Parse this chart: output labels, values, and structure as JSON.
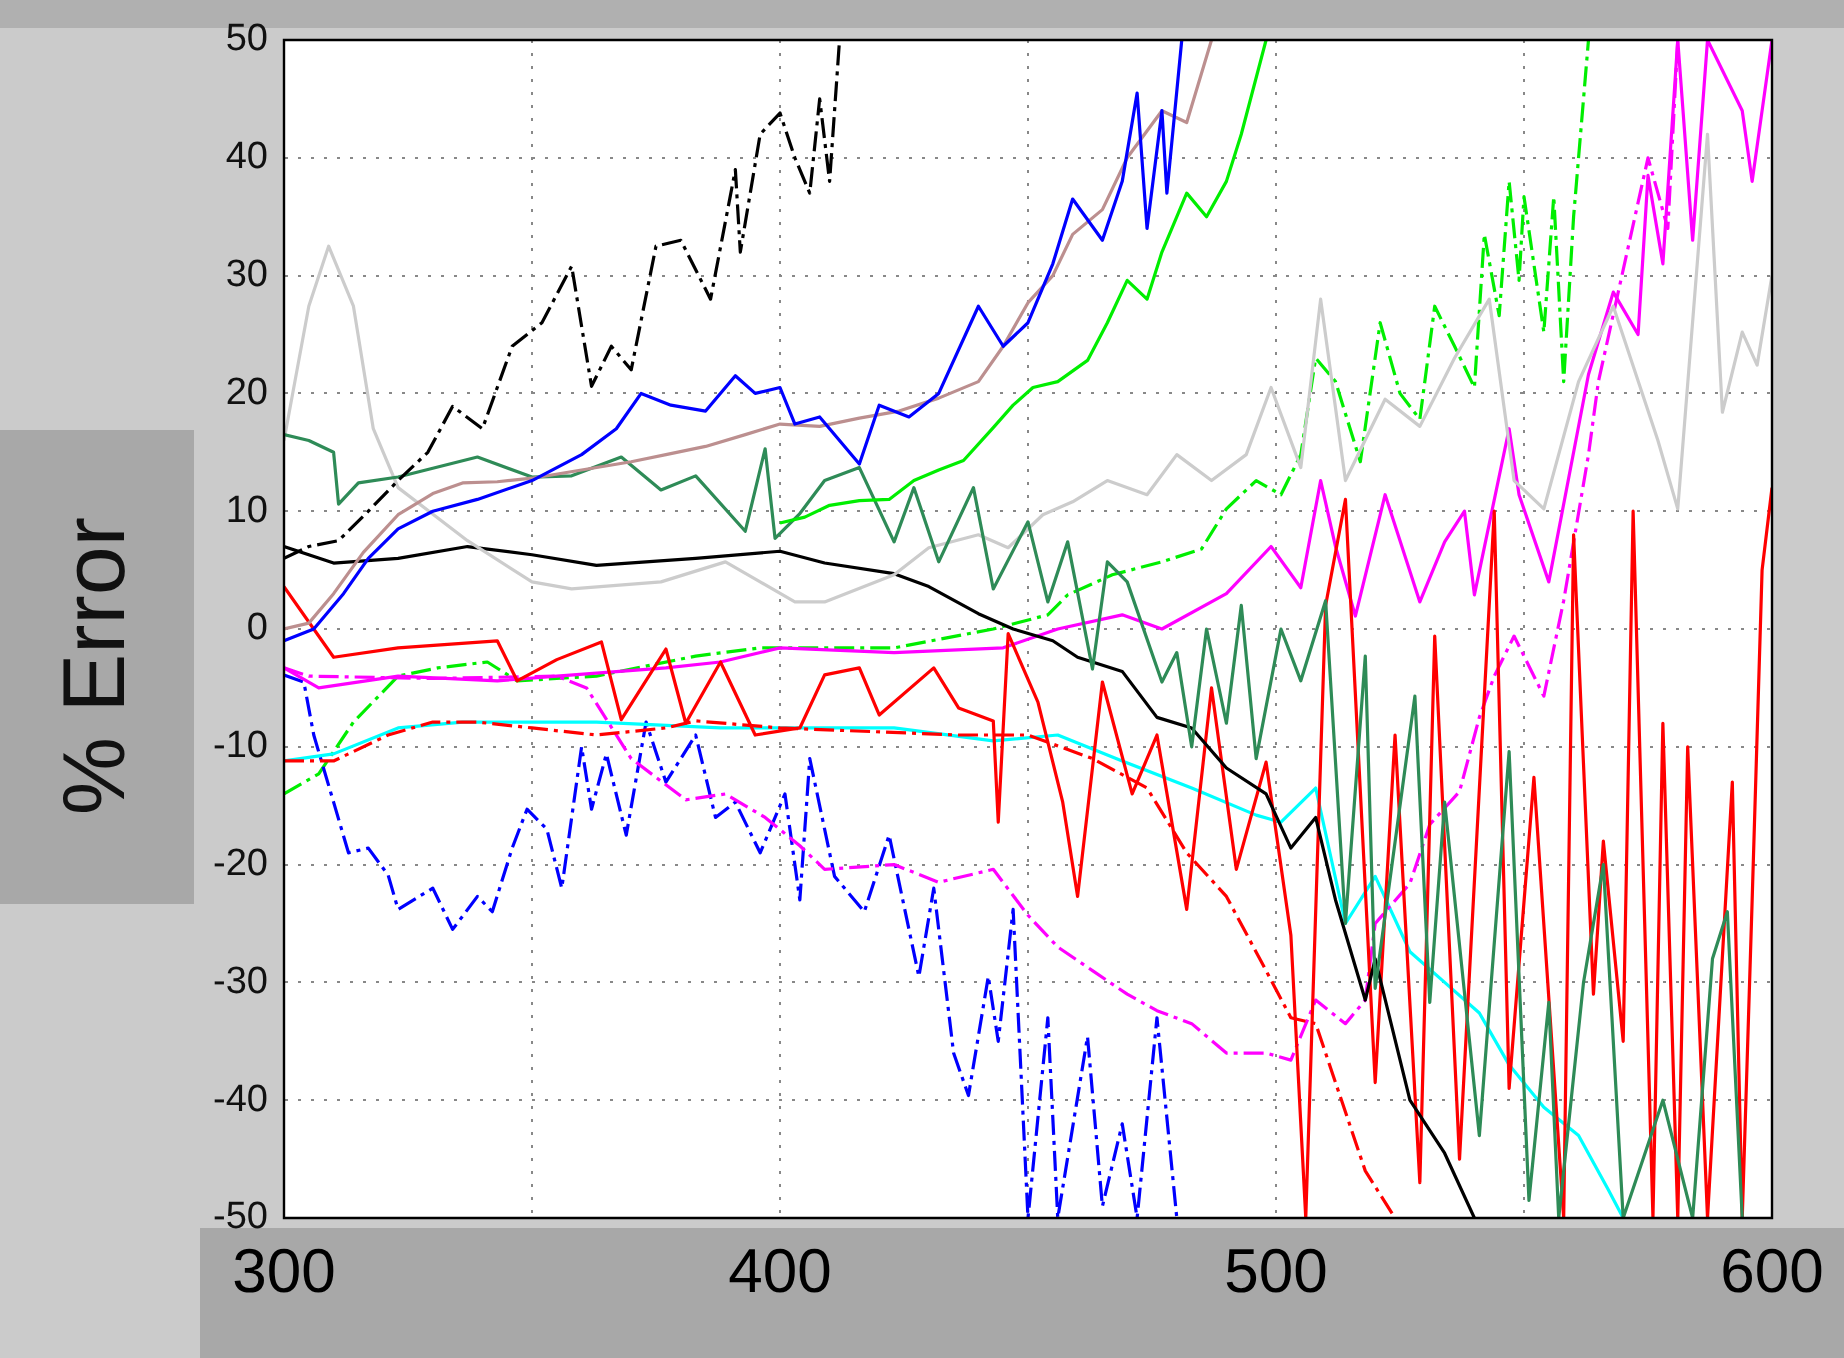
{
  "chart_data": {
    "type": "line",
    "ylabel": "% Error",
    "xlim": [
      300,
      600
    ],
    "ylim": [
      -50,
      50
    ],
    "xticks": [
      300,
      {
        "value": 350,
        "label": null
      },
      400,
      {
        "value": 450,
        "label": null
      },
      500,
      {
        "value": 550,
        "label": null
      },
      600
    ],
    "yticks": [
      -50,
      -40,
      -30,
      -20,
      -10,
      0,
      10,
      20,
      30,
      40,
      50
    ],
    "grid": true,
    "legend": false,
    "marker": "none",
    "series": [
      {
        "color": "#000000",
        "line_style": "dashed",
        "x": [
          300,
          305,
          311,
          317,
          323,
          329,
          334,
          340,
          346,
          352,
          358,
          362,
          366,
          370,
          375,
          380,
          386,
          391,
          392,
          396,
          400,
          403,
          406,
          408,
          410,
          412
        ],
        "values": [
          6,
          7,
          7.5,
          10,
          12.6,
          15,
          18.9,
          17,
          24,
          26,
          30.8,
          20.6,
          24,
          22,
          32.5,
          33,
          28,
          39,
          32,
          42,
          43.8,
          40,
          37,
          45,
          38,
          50
        ]
      },
      {
        "color": "#0000ff",
        "line_style": "solid",
        "x": [
          300,
          306,
          312,
          317,
          323,
          330,
          339,
          350,
          360,
          367,
          372,
          378,
          385,
          391,
          395,
          400,
          403,
          408,
          416,
          420,
          426,
          432,
          440,
          445,
          450,
          455,
          459,
          465,
          469,
          472,
          474,
          477,
          478,
          481
        ],
        "values": [
          -1,
          0,
          3,
          6,
          8.5,
          10,
          11,
          12.6,
          14.8,
          17,
          20,
          19,
          18.5,
          21.5,
          20,
          20.5,
          17.4,
          18,
          14,
          19,
          18,
          20,
          27.4,
          24,
          26,
          31,
          36.5,
          33,
          38,
          45.5,
          34,
          44,
          37,
          50
        ]
      },
      {
        "color": "#bc8f8f",
        "line_style": "solid",
        "x": [
          300,
          305,
          310,
          316,
          323,
          330,
          336,
          343,
          350,
          360,
          370,
          377,
          385,
          393,
          400,
          408,
          416,
          424,
          432,
          440,
          445,
          450,
          455,
          459,
          465,
          470,
          477,
          482,
          487
        ],
        "values": [
          0,
          0.5,
          3,
          6.5,
          9.7,
          11.5,
          12.4,
          12.5,
          12.8,
          13.5,
          14.2,
          14.8,
          15.5,
          16.5,
          17.4,
          17.2,
          17.9,
          18.5,
          19.6,
          21,
          24,
          27.7,
          30,
          33.5,
          35.6,
          40,
          44,
          43,
          50
        ]
      },
      {
        "color": "#00ee00",
        "line_style": "solid",
        "x": [
          400,
          405,
          410,
          416,
          422,
          427,
          432,
          437,
          443,
          447,
          451,
          456,
          462,
          466,
          470,
          474,
          477,
          482,
          486,
          490,
          493,
          498
        ],
        "values": [
          9,
          9.5,
          10.5,
          10.9,
          11,
          12.6,
          13.5,
          14.3,
          17.1,
          19,
          20.5,
          21,
          22.8,
          26,
          29.6,
          28,
          32,
          37,
          35,
          38,
          42,
          50
        ]
      },
      {
        "color": "#2e8b57",
        "line_style": "solid",
        "x": [
          300,
          305,
          310,
          311,
          315,
          323,
          339,
          350,
          358,
          368,
          376,
          383,
          393,
          397,
          399,
          404,
          409,
          416,
          423,
          427,
          432,
          439,
          443,
          450,
          454,
          458,
          463,
          466,
          470,
          477,
          480,
          483,
          486,
          490,
          493,
          496,
          501,
          505,
          510,
          514,
          518,
          520,
          528,
          531,
          534,
          541,
          547,
          551,
          555,
          557,
          562,
          566,
          570,
          578,
          584,
          588,
          591,
          594
        ],
        "values": [
          16.5,
          16,
          15,
          10.6,
          12.4,
          12.9,
          14.6,
          12.9,
          13,
          14.6,
          11.8,
          13,
          8.3,
          15.3,
          7.7,
          9.8,
          12.6,
          13.7,
          7.4,
          12,
          5.7,
          12,
          3.4,
          9.1,
          2.3,
          7.4,
          -3.4,
          5.7,
          4,
          -4.5,
          -2,
          -10,
          0,
          -8,
          2,
          -11,
          0,
          -4.4,
          2.4,
          -25,
          -2.3,
          -30.5,
          -5.7,
          -31.7,
          -14.7,
          -43,
          -10.4,
          -48.5,
          -31.7,
          -50,
          -30,
          -20,
          -50,
          -40,
          -50,
          -28,
          -24,
          -50
        ]
      },
      {
        "color": "#cccccc",
        "line_style": "solid",
        "x": [
          300,
          305,
          309,
          314,
          318,
          323,
          337,
          350,
          358,
          376,
          389,
          396,
          403,
          409,
          423,
          430,
          440,
          446,
          453,
          459,
          466,
          474,
          480,
          487,
          494,
          499,
          505,
          509,
          514,
          522,
          529,
          536,
          543,
          548,
          554,
          561,
          568,
          577,
          581,
          587,
          590,
          594,
          597,
          600
        ],
        "values": [
          16,
          27.4,
          32.5,
          27.4,
          17,
          12,
          7.5,
          4,
          3.4,
          4,
          5.7,
          4,
          2.3,
          2.3,
          4.6,
          6.9,
          8,
          6.9,
          9.7,
          10.8,
          12.6,
          11.4,
          14.8,
          12.6,
          14.8,
          20.5,
          13.7,
          28,
          12.6,
          19.5,
          17.2,
          23,
          28,
          12.6,
          10.2,
          21,
          27.4,
          16,
          10.2,
          42,
          18.4,
          25.2,
          22.4,
          30
        ]
      },
      {
        "color": "#000000",
        "line_style": "solid",
        "x": [
          300,
          310,
          323,
          337,
          350,
          363,
          383,
          400,
          409,
          423,
          430,
          440,
          447,
          455,
          460,
          469,
          476,
          483,
          490,
          498,
          503,
          508,
          512,
          518,
          520,
          527,
          534,
          540
        ],
        "values": [
          7,
          5.6,
          6,
          7,
          6.3,
          5.4,
          6,
          6.6,
          5.6,
          4.7,
          3.6,
          1.3,
          0,
          -1,
          -2.4,
          -3.6,
          -7.5,
          -8.4,
          -11.8,
          -14,
          -18.6,
          -16,
          -23,
          -31.5,
          -28,
          -40,
          -44.5,
          -50
        ]
      },
      {
        "color": "#ff0000",
        "line_style": "solid",
        "x": [
          300,
          310,
          323,
          343,
          347,
          355,
          364,
          368,
          377,
          381,
          388,
          395,
          404,
          409,
          416,
          420,
          431,
          436,
          443,
          444,
          446,
          452,
          457,
          460,
          465,
          471,
          476,
          482,
          487,
          492,
          498,
          503,
          506,
          510,
          514,
          520,
          524,
          529,
          532,
          537,
          544,
          547,
          552,
          558,
          560,
          564,
          566,
          570,
          572,
          576,
          578,
          581,
          583,
          587,
          592,
          594,
          596,
          598,
          600
        ],
        "values": [
          3.6,
          -2.4,
          -1.6,
          -1,
          -4.4,
          -2.6,
          -1.1,
          -7.7,
          -1.7,
          -8,
          -2.8,
          -9,
          -8.4,
          -3.9,
          -3.3,
          -7.3,
          -3.3,
          -6.7,
          -7.8,
          -16.4,
          -0.4,
          -6.2,
          -14.7,
          -22.7,
          -4.5,
          -14,
          -9,
          -23.8,
          -5,
          -20.4,
          -11.3,
          -26,
          -50,
          2,
          11,
          -38.5,
          -9,
          -47,
          -0.6,
          -45,
          10,
          -39,
          -12.6,
          -50,
          8,
          -31,
          -18,
          -35,
          10,
          -50,
          -8,
          -50,
          -10,
          -50,
          -13,
          -50,
          -23,
          5,
          12
        ]
      },
      {
        "color": "#ff0000",
        "line_style": "dashed",
        "x": [
          300,
          310,
          321,
          330,
          339,
          350,
          363,
          377,
          383,
          400,
          436,
          450,
          463,
          474,
          482,
          490,
          498,
          503,
          508,
          512,
          518,
          524
        ],
        "values": [
          -11.2,
          -11.2,
          -9,
          -7.9,
          -7.9,
          -8.4,
          -9,
          -8.4,
          -7.8,
          -8.4,
          -9,
          -9,
          -11,
          -13.5,
          -19,
          -22.7,
          -29,
          -33,
          -33.5,
          -38.5,
          -46,
          -50
        ]
      },
      {
        "color": "#ff00ff",
        "line_style": "solid",
        "x": [
          300,
          307,
          323,
          343,
          355,
          377,
          388,
          400,
          423,
          445,
          456,
          469,
          477,
          490,
          499,
          505,
          509,
          512,
          516,
          522,
          529,
          534,
          538,
          540,
          547,
          549,
          555,
          563,
          568,
          573,
          575,
          578,
          581,
          584,
          587,
          594,
          596,
          600
        ],
        "values": [
          -3.3,
          -5,
          -4,
          -4.4,
          -4,
          -3.3,
          -2.8,
          -1.6,
          -2,
          -1.6,
          0,
          1.2,
          0,
          3,
          7,
          3.5,
          12.6,
          7,
          1.1,
          11.4,
          2.3,
          7.4,
          10,
          2.9,
          17,
          11.4,
          4,
          21.6,
          28.6,
          25,
          38.5,
          31,
          50,
          33,
          50,
          44,
          38,
          50
        ]
      },
      {
        "color": "#ff00ff",
        "line_style": "dashed",
        "x": [
          300,
          305,
          330,
          355,
          361,
          370,
          381,
          389,
          397,
          404,
          409,
          423,
          432,
          443,
          450,
          456,
          463,
          470,
          476,
          483,
          490,
          498,
          503,
          508,
          514,
          518,
          520,
          527,
          531,
          537,
          541,
          544,
          548,
          554,
          558,
          563,
          565,
          575,
          579,
          581
        ],
        "values": [
          -3.3,
          -4,
          -4.2,
          -4,
          -5,
          -11,
          -14.5,
          -14,
          -16,
          -18.4,
          -20.4,
          -20,
          -21.5,
          -20.4,
          -24.3,
          -27,
          -29,
          -31,
          -32.4,
          -33.5,
          -36,
          -36,
          -36.6,
          -31.5,
          -33.5,
          -31.5,
          -25,
          -21.6,
          -16.6,
          -13.8,
          -7.5,
          -4,
          -0.6,
          -5.7,
          2.4,
          14.8,
          21,
          40,
          34,
          50
        ]
      },
      {
        "color": "#00ffff",
        "line_style": "solid",
        "x": [
          300,
          310,
          323,
          336,
          363,
          388,
          396,
          423,
          443,
          456,
          469,
          483,
          496,
          501,
          508,
          514,
          520,
          527,
          534,
          541,
          547,
          554,
          561,
          567,
          570
        ],
        "values": [
          -11.2,
          -10.6,
          -8.4,
          -7.9,
          -7.9,
          -8.4,
          -8.4,
          -8.4,
          -9.5,
          -9,
          -11.2,
          -13.5,
          -15.8,
          -16.4,
          -13.5,
          -25,
          -21,
          -27.4,
          -30,
          -32.6,
          -37,
          -40.6,
          -43,
          -47.6,
          -50
        ]
      },
      {
        "color": "#0000ff",
        "line_style": "dashed",
        "x": [
          300,
          304,
          306,
          310,
          313,
          317,
          321,
          323,
          330,
          334,
          339,
          342,
          346,
          349,
          353,
          356,
          360,
          362,
          365,
          369,
          373,
          377,
          383,
          387,
          391,
          396,
          401,
          404,
          406,
          411,
          417,
          422,
          428,
          431,
          435,
          438,
          442,
          444,
          447,
          450,
          454,
          456,
          462,
          465,
          469,
          472,
          476,
          480
        ],
        "values": [
          -3.9,
          -4.5,
          -9,
          -14.7,
          -19,
          -18.6,
          -20.9,
          -23.8,
          -22,
          -25.5,
          -22.7,
          -24,
          -18.6,
          -15.3,
          -17,
          -22,
          -10,
          -15.3,
          -10.6,
          -17.5,
          -7.9,
          -13,
          -9,
          -16,
          -14.7,
          -19,
          -14,
          -23,
          -11,
          -21,
          -24,
          -17.5,
          -29.5,
          -22,
          -36,
          -39.6,
          -29.5,
          -35,
          -23.8,
          -50,
          -33,
          -50,
          -34.6,
          -49,
          -42,
          -50,
          -33,
          -50
        ]
      },
      {
        "color": "#00ee00",
        "line_style": "dashed",
        "x": [
          300,
          307,
          314,
          323,
          331,
          341,
          347,
          363,
          383,
          396,
          423,
          443,
          454,
          458,
          467,
          477,
          485,
          490,
          496,
          501,
          505,
          508,
          512,
          517,
          521,
          525,
          529,
          532,
          536,
          540,
          542,
          545,
          547,
          549,
          550,
          554,
          556,
          558,
          560,
          563
        ],
        "values": [
          -14,
          -12.3,
          -7.9,
          -4,
          -3.3,
          -2.8,
          -4.4,
          -4,
          -2.3,
          -1.6,
          -1.6,
          0,
          1.2,
          2.9,
          4.6,
          5.7,
          6.8,
          10.2,
          12.6,
          11.4,
          14.8,
          23,
          21,
          14.2,
          26,
          20,
          17.8,
          27.4,
          24,
          20.5,
          33.5,
          26.6,
          38,
          29.6,
          36.7,
          25.2,
          36.7,
          21,
          35,
          50
        ]
      }
    ]
  }
}
